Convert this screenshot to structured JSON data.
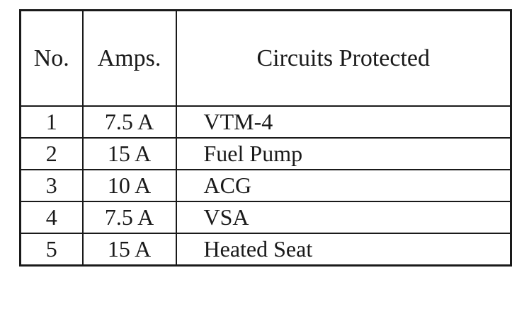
{
  "colors": {
    "background": "#ffffff",
    "border": "#1a1a1a",
    "text": "#1a1a1a"
  },
  "table": {
    "headers": {
      "no": "No.",
      "amps": "Amps.",
      "circuits": "Circuits Protected"
    },
    "rows": [
      {
        "no": "1",
        "amps": "7.5 A",
        "circuit": "VTM-4"
      },
      {
        "no": "2",
        "amps": "15 A",
        "circuit": "Fuel Pump"
      },
      {
        "no": "3",
        "amps": "10 A",
        "circuit": "ACG"
      },
      {
        "no": "4",
        "amps": "7.5 A",
        "circuit": "VSA"
      },
      {
        "no": "5",
        "amps": "15 A",
        "circuit": "Heated Seat"
      }
    ]
  }
}
